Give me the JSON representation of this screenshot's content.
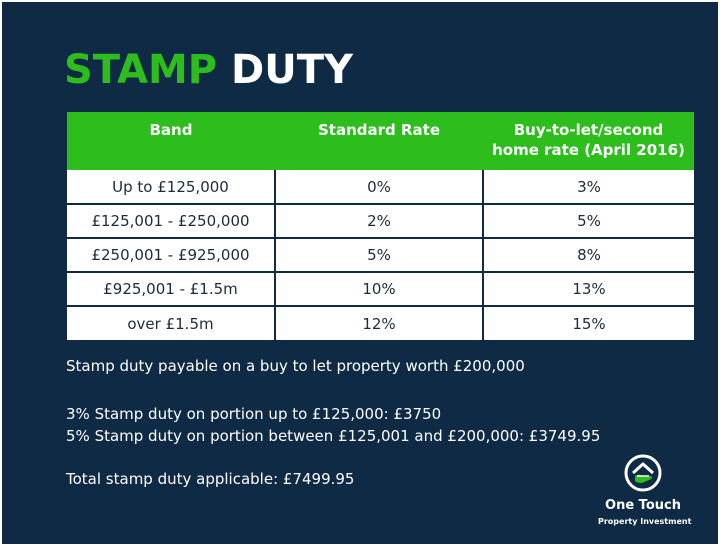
{
  "title": {
    "part1": "STAMP",
    "part2": "DUTY"
  },
  "colors": {
    "background": "#0f2a44",
    "accent": "#2dbe1e",
    "cell": "#ffffff"
  },
  "table": {
    "headers": [
      "Band",
      "Standard Rate",
      "Buy-to-let/second home rate (April 2016)"
    ],
    "rows": [
      [
        "Up to £125,000",
        "0%",
        "3%"
      ],
      [
        "£125,001 - £250,000",
        "2%",
        "5%"
      ],
      [
        "£250,001 - £925,000",
        "5%",
        "8%"
      ],
      [
        "£925,001 - £1.5m",
        "10%",
        "13%"
      ],
      [
        "over £1.5m",
        "12%",
        "15%"
      ]
    ]
  },
  "notes": {
    "intro": "Stamp duty payable on a buy to let property worth £200,000",
    "line1": "3% Stamp duty on portion up to £125,000: £3750",
    "line2": "5% Stamp duty on portion between £125,001 and £200,000: £3749.95",
    "total": "Total stamp duty applicable: £7499.95"
  },
  "logo": {
    "name": "One Touch",
    "tagline": "Property Investment",
    "icon": "house-hand-icon"
  }
}
